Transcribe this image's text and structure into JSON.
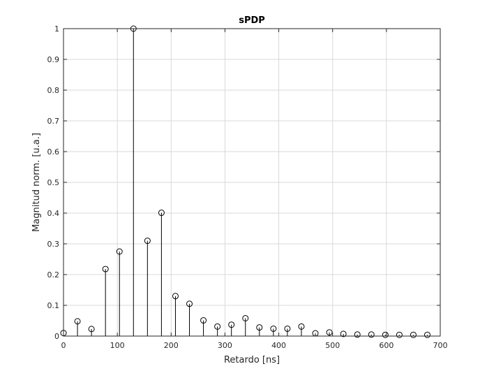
{
  "chart_data": {
    "type": "stem",
    "title": "sPDP",
    "xlabel": "Retardo [ns]",
    "ylabel": "Magnitud norm. [u.a.]",
    "xlim": [
      0,
      700
    ],
    "ylim": [
      0,
      1
    ],
    "xticks": [
      0,
      100,
      200,
      300,
      400,
      500,
      600,
      700
    ],
    "yticks": [
      0,
      0.1,
      0.2,
      0.3,
      0.4,
      0.5,
      0.6,
      0.7,
      0.8,
      0.9,
      1
    ],
    "xtick_labels": [
      "0",
      "100",
      "200",
      "300",
      "400",
      "500",
      "600",
      "700"
    ],
    "ytick_labels": [
      "0",
      "0.1",
      "0.2",
      "0.3",
      "0.4",
      "0.5",
      "0.6",
      "0.7",
      "0.8",
      "0.9",
      "1"
    ],
    "grid": true,
    "marker": "open-circle",
    "color": "#000000",
    "x": [
      0,
      26,
      52,
      78,
      104,
      130,
      156,
      182,
      208,
      234,
      260,
      286,
      312,
      338,
      364,
      390,
      416,
      442,
      468,
      494,
      520,
      546,
      572,
      598,
      624,
      650,
      676
    ],
    "y": [
      0.01,
      0.048,
      0.023,
      0.218,
      0.275,
      1.0,
      0.31,
      0.401,
      0.13,
      0.105,
      0.051,
      0.031,
      0.037,
      0.058,
      0.028,
      0.024,
      0.024,
      0.031,
      0.009,
      0.012,
      0.007,
      0.005,
      0.005,
      0.004,
      0.004,
      0.004,
      0.004
    ]
  }
}
